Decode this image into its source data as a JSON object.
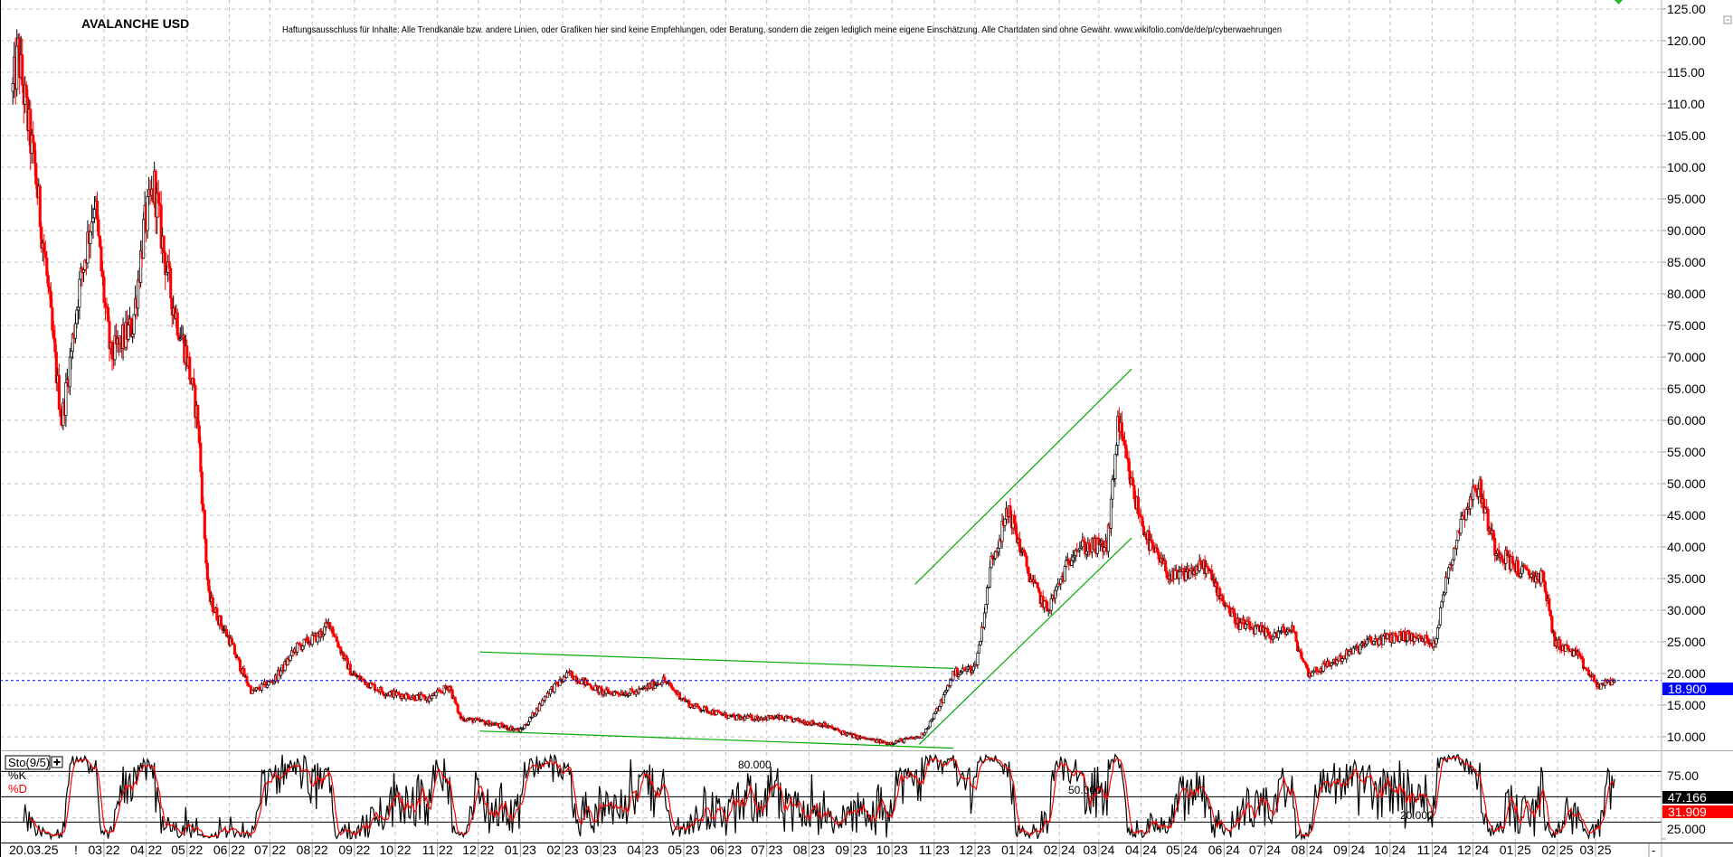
{
  "chart_data": {
    "type": "candlestick",
    "title": "AVALANCHE USD",
    "disclaimer": "Haftungsausschluss für Inhalte: Alle Trendkanäle bzw. andere Linien, oder Grafiken hier sind keine Empfehlungen, oder Beratung, sondern die zeigen lediglich meine eigene Einschätzung. Alle Chartdaten sind ohne Gewähr.  www.wikifolio.com/de/de/p/cyberwaehrungen",
    "ylim": [
      8,
      127
    ],
    "grid": true,
    "colors": {
      "up": "#ffffff",
      "down": "#ff0000",
      "outline": "#000000",
      "trendline": "#00aa00",
      "current_price": "#0000ff",
      "k_line": "#000000",
      "d_line": "#ff0000"
    },
    "y_ticks": [
      "125.00",
      "120.00",
      "115.00",
      "110.00",
      "105.00",
      "100.00",
      "95.000",
      "90.000",
      "85.000",
      "80.000",
      "75.000",
      "70.000",
      "65.000",
      "60.000",
      "55.000",
      "50.000",
      "45.000",
      "40.000",
      "35.000",
      "30.000",
      "25.000",
      "20.000",
      "15.000",
      "10.000"
    ],
    "y_tick_values": [
      125,
      120,
      115,
      110,
      105,
      100,
      95,
      90,
      85,
      80,
      75,
      70,
      65,
      60,
      55,
      50,
      45,
      40,
      35,
      30,
      25,
      20,
      15,
      10
    ],
    "x_start_labels": [
      "20.03.25",
      "!"
    ],
    "x_ticks": [
      {
        "date": "2022-03-01",
        "label": "03 22"
      },
      {
        "date": "2022-04-01",
        "label": "04 22"
      },
      {
        "date": "2022-05-01",
        "label": "05 22"
      },
      {
        "date": "2022-06-01",
        "label": "06 22"
      },
      {
        "date": "2022-07-01",
        "label": "07 22"
      },
      {
        "date": "2022-08-01",
        "label": "08 22"
      },
      {
        "date": "2022-09-01",
        "label": "09 22"
      },
      {
        "date": "2022-10-01",
        "label": "10 22"
      },
      {
        "date": "2022-11-01",
        "label": "11 22"
      },
      {
        "date": "2022-12-01",
        "label": "12 22"
      },
      {
        "date": "2023-01-01",
        "label": "01 23"
      },
      {
        "date": "2023-02-01",
        "label": "02 23"
      },
      {
        "date": "2023-03-01",
        "label": "03 23"
      },
      {
        "date": "2023-04-01",
        "label": "04 23"
      },
      {
        "date": "2023-05-01",
        "label": "05 23"
      },
      {
        "date": "2023-06-01",
        "label": "06 23"
      },
      {
        "date": "2023-07-01",
        "label": "07 23"
      },
      {
        "date": "2023-08-01",
        "label": "08 23"
      },
      {
        "date": "2023-09-01",
        "label": "09 23"
      },
      {
        "date": "2023-10-01",
        "label": "10 23"
      },
      {
        "date": "2023-11-01",
        "label": "11 23"
      },
      {
        "date": "2023-12-01",
        "label": "12 23"
      },
      {
        "date": "2024-01-01",
        "label": "01 24"
      },
      {
        "date": "2024-02-01",
        "label": "02 24"
      },
      {
        "date": "2024-03-01",
        "label": "03 24"
      },
      {
        "date": "2024-04-01",
        "label": "04 24"
      },
      {
        "date": "2024-05-01",
        "label": "05 24"
      },
      {
        "date": "2024-06-01",
        "label": "06 24"
      },
      {
        "date": "2024-07-01",
        "label": "07 24"
      },
      {
        "date": "2024-08-01",
        "label": "08 24"
      },
      {
        "date": "2024-09-01",
        "label": "09 24"
      },
      {
        "date": "2024-10-01",
        "label": "10 24"
      },
      {
        "date": "2024-11-01",
        "label": "11 24"
      },
      {
        "date": "2024-12-01",
        "label": "12 24"
      },
      {
        "date": "2025-01-01",
        "label": "01 25"
      },
      {
        "date": "2025-02-01",
        "label": "02 25"
      },
      {
        "date": "2025-03-01",
        "label": "03 25"
      }
    ],
    "price_path": [
      [
        "2021-12-24",
        112
      ],
      [
        "2021-12-28",
        118
      ],
      [
        "2022-01-09",
        100
      ],
      [
        "2022-01-17",
        85
      ],
      [
        "2022-01-29",
        60
      ],
      [
        "2022-02-10",
        80
      ],
      [
        "2022-02-22",
        95
      ],
      [
        "2022-03-06",
        70
      ],
      [
        "2022-03-22",
        75
      ],
      [
        "2022-03-30",
        90
      ],
      [
        "2022-04-07",
        97
      ],
      [
        "2022-04-19",
        80
      ],
      [
        "2022-05-01",
        70
      ],
      [
        "2022-05-09",
        60
      ],
      [
        "2022-05-13",
        45
      ],
      [
        "2022-05-17",
        32
      ],
      [
        "2022-06-02",
        25
      ],
      [
        "2022-06-18",
        17
      ],
      [
        "2022-07-04",
        19
      ],
      [
        "2022-07-20",
        24
      ],
      [
        "2022-08-06",
        26
      ],
      [
        "2022-08-14",
        28
      ],
      [
        "2022-08-30",
        20
      ],
      [
        "2022-09-23",
        17
      ],
      [
        "2022-10-25",
        16
      ],
      [
        "2022-11-10",
        18
      ],
      [
        "2022-11-18",
        13
      ],
      [
        "2022-12-12",
        12
      ],
      [
        "2023-01-01",
        11
      ],
      [
        "2023-01-21",
        17
      ],
      [
        "2023-02-06",
        20
      ],
      [
        "2023-03-03",
        17
      ],
      [
        "2023-03-27",
        17
      ],
      [
        "2023-04-16",
        19
      ],
      [
        "2023-05-06",
        15
      ],
      [
        "2023-06-07",
        13
      ],
      [
        "2023-07-09",
        13
      ],
      [
        "2023-08-10",
        12
      ],
      [
        "2023-09-04",
        10
      ],
      [
        "2023-09-28",
        9
      ],
      [
        "2023-10-22",
        10
      ],
      [
        "2023-11-15",
        20
      ],
      [
        "2023-12-01",
        21
      ],
      [
        "2023-12-13",
        38
      ],
      [
        "2023-12-26",
        46
      ],
      [
        "2024-01-11",
        35
      ],
      [
        "2024-01-23",
        30
      ],
      [
        "2024-02-12",
        40
      ],
      [
        "2024-03-07",
        40
      ],
      [
        "2024-03-15",
        60
      ],
      [
        "2024-03-27",
        48
      ],
      [
        "2024-04-08",
        40
      ],
      [
        "2024-04-24",
        35
      ],
      [
        "2024-05-18",
        37
      ],
      [
        "2024-06-11",
        28
      ],
      [
        "2024-07-05",
        26
      ],
      [
        "2024-07-21",
        27
      ],
      [
        "2024-08-02",
        20
      ],
      [
        "2024-08-22",
        22
      ],
      [
        "2024-09-15",
        25
      ],
      [
        "2024-10-10",
        26
      ],
      [
        "2024-11-03",
        25
      ],
      [
        "2024-11-11",
        35
      ],
      [
        "2024-11-23",
        45
      ],
      [
        "2024-12-05",
        50
      ],
      [
        "2024-12-17",
        40
      ],
      [
        "2025-01-06",
        36
      ],
      [
        "2025-01-22",
        35
      ],
      [
        "2025-01-30",
        25
      ],
      [
        "2025-02-15",
        23
      ],
      [
        "2025-03-03",
        18
      ],
      [
        "2025-03-15",
        18.9
      ]
    ],
    "trendlines": [
      {
        "from": [
          "2023-10-18",
          34.1
        ],
        "to": [
          "2024-03-25",
          68.1
        ]
      },
      {
        "from": [
          "2023-10-21",
          8.8
        ],
        "to": [
          "2024-03-25",
          41.4
        ]
      },
      {
        "from": [
          "2022-12-02",
          23.4
        ],
        "to": [
          "2023-11-15",
          20.8
        ]
      },
      {
        "from": [
          "2022-12-02",
          10.9
        ],
        "to": [
          "2023-11-15",
          8.2
        ]
      }
    ],
    "current_price": {
      "value": 18.9,
      "label": "18.900"
    },
    "indicator": {
      "name": "Sto(9/5)",
      "k_label": "%K",
      "d_label": "%D",
      "k_period": 9,
      "d_period": 5,
      "levels": [
        {
          "value": 80,
          "label": "80.000"
        },
        {
          "value": 50,
          "label": "50.000"
        },
        {
          "value": 20,
          "label": "20.000"
        }
      ],
      "y_ticks": [
        {
          "value": 75,
          "label": "75.00"
        },
        {
          "value": 25,
          "label": "25.000"
        }
      ],
      "k_last": {
        "value": 47.166,
        "label": "47.166"
      },
      "d_last": {
        "value": 31.909,
        "label": "31.909"
      }
    },
    "scroll_button": "-"
  }
}
